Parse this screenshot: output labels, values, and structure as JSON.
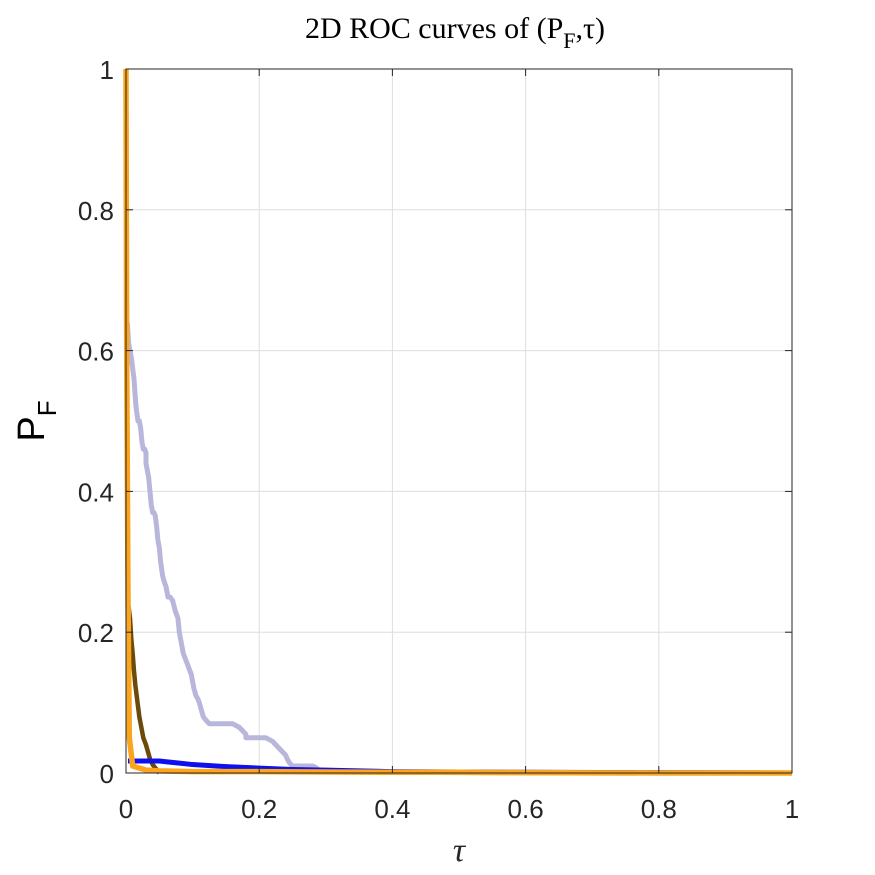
{
  "chart_data": {
    "type": "line",
    "title": {
      "main": "2D ROC curves of (P",
      "sub": "F",
      "tail": ",τ)"
    },
    "xlabel": "τ",
    "ylabel": {
      "main": "P",
      "sub": "F"
    },
    "xlim": [
      0,
      1
    ],
    "ylim": [
      0,
      1
    ],
    "xticks": [
      0,
      0.2,
      0.4,
      0.6,
      0.8,
      1
    ],
    "yticks": [
      0,
      0.2,
      0.4,
      0.6,
      0.8,
      1
    ],
    "xtick_labels": [
      "0",
      "0.2",
      "0.4",
      "0.6",
      "0.8",
      "1"
    ],
    "ytick_labels": [
      "0",
      "0.2",
      "0.4",
      "0.6",
      "0.8",
      "1"
    ],
    "grid": true,
    "series": [
      {
        "name": "lavender",
        "color": "#b9b6dc",
        "x": [
          0.002,
          0.004,
          0.008,
          0.012,
          0.015,
          0.018,
          0.02,
          0.022,
          0.024,
          0.026,
          0.028,
          0.03,
          0.03,
          0.034,
          0.036,
          0.038,
          0.04,
          0.042,
          0.044,
          0.046,
          0.048,
          0.05,
          0.052,
          0.055,
          0.058,
          0.06,
          0.063,
          0.066,
          0.07,
          0.074,
          0.078,
          0.08,
          0.082,
          0.084,
          0.086,
          0.09,
          0.094,
          0.098,
          0.1,
          0.102,
          0.105,
          0.108,
          0.11,
          0.113,
          0.116,
          0.12,
          0.125,
          0.13,
          0.14,
          0.15,
          0.16,
          0.17,
          0.18,
          0.18,
          0.185,
          0.19,
          0.2,
          0.21,
          0.22,
          0.23,
          0.24,
          0.242,
          0.245,
          0.25,
          0.26,
          0.27,
          0.28,
          0.285,
          0.29,
          0.3,
          0.4,
          0.5,
          0.6,
          0.8,
          1.0
        ],
        "y": [
          0.64,
          0.61,
          0.59,
          0.56,
          0.52,
          0.5,
          0.5,
          0.49,
          0.47,
          0.46,
          0.46,
          0.455,
          0.44,
          0.42,
          0.4,
          0.38,
          0.37,
          0.37,
          0.365,
          0.35,
          0.33,
          0.32,
          0.3,
          0.28,
          0.27,
          0.265,
          0.25,
          0.25,
          0.245,
          0.23,
          0.22,
          0.2,
          0.19,
          0.18,
          0.17,
          0.16,
          0.15,
          0.14,
          0.13,
          0.12,
          0.11,
          0.105,
          0.1,
          0.09,
          0.08,
          0.075,
          0.07,
          0.07,
          0.07,
          0.07,
          0.07,
          0.065,
          0.055,
          0.05,
          0.05,
          0.05,
          0.05,
          0.05,
          0.045,
          0.035,
          0.025,
          0.02,
          0.015,
          0.01,
          0.01,
          0.01,
          0.01,
          0.008,
          0.004,
          0.003,
          0.001,
          0.0005,
          0.0002,
          0.0,
          0.0
        ]
      },
      {
        "name": "dark-brown",
        "color": "#6b4a0a",
        "x": [
          0.003,
          0.004,
          0.006,
          0.008,
          0.01,
          0.012,
          0.014,
          0.016,
          0.018,
          0.02,
          0.022,
          0.024,
          0.026,
          0.028,
          0.03,
          0.033,
          0.036,
          0.04,
          0.045,
          0.05
        ],
        "y": [
          0.24,
          0.235,
          0.22,
          0.19,
          0.17,
          0.145,
          0.125,
          0.11,
          0.095,
          0.08,
          0.07,
          0.06,
          0.05,
          0.045,
          0.04,
          0.03,
          0.02,
          0.012,
          0.006,
          0.0
        ]
      },
      {
        "name": "blue",
        "color": "#0f0ff0",
        "x": [
          0.003,
          0.01,
          0.02,
          0.03,
          0.05,
          0.06,
          0.08,
          0.1,
          0.15,
          0.2,
          0.25,
          0.3,
          0.35,
          0.4,
          0.5,
          0.6,
          0.8,
          1.0
        ],
        "y": [
          0.017,
          0.017,
          0.017,
          0.017,
          0.017,
          0.016,
          0.014,
          0.012,
          0.009,
          0.007,
          0.005,
          0.004,
          0.003,
          0.002,
          0.0015,
          0.001,
          0.0005,
          0.0
        ]
      },
      {
        "name": "orange",
        "color": "#fba51f",
        "x": [
          0.0,
          0.001,
          0.003,
          0.005,
          0.01,
          0.03,
          0.05,
          0.1,
          0.2,
          0.3,
          0.4,
          0.5,
          0.6,
          0.8,
          1.0
        ],
        "y": [
          1.0,
          0.6,
          0.25,
          0.05,
          0.01,
          0.004,
          0.003,
          0.002,
          0.002,
          0.0015,
          0.001,
          0.001,
          0.0005,
          0.0,
          0.0
        ]
      }
    ]
  }
}
